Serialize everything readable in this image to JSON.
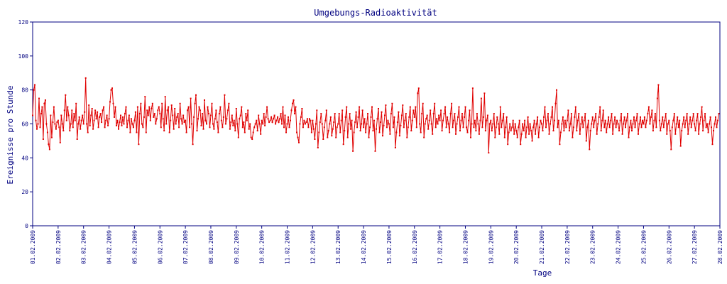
{
  "chart_data": {
    "type": "line",
    "title": "Umgebungs-Radioaktivität",
    "xlabel": "Tage",
    "ylabel": "Ereignisse pro Stunde",
    "ylim": [
      0,
      120
    ],
    "yticks": [
      "0",
      "20",
      "40",
      "60",
      "80",
      "100",
      "120"
    ],
    "x_range": [
      "01.02.2009",
      "28.02.2009"
    ],
    "xticks": [
      "01.02.2009",
      "02.02.2009",
      "03.02.2009",
      "04.02.2009",
      "05.02.2009",
      "06.02.2009",
      "07.02.2009",
      "08.02.2009",
      "09.02.2009",
      "10.02.2009",
      "11.02.2009",
      "12.02.2009",
      "13.02.2009",
      "14.02.2009",
      "15.02.2009",
      "16.02.2009",
      "17.02.2009",
      "18.02.2009",
      "19.02.2009",
      "20.02.2009",
      "21.02.2009",
      "22.02.2009",
      "23.02.2009",
      "24.02.2009",
      "25.02.2009",
      "26.02.2009",
      "27.02.2009",
      "28.02.2009"
    ],
    "grid": false,
    "legend": "none",
    "series_color": "#e00000",
    "axis_color": "#000080",
    "series": [
      {
        "name": "",
        "daily_values": [
          [
            65,
            80,
            83,
            62,
            57,
            60,
            75,
            58,
            66,
            70,
            51,
            72,
            74,
            60,
            55,
            48,
            45,
            65,
            52,
            61,
            70,
            60,
            57,
            61
          ],
          [
            62,
            58,
            49,
            65,
            60,
            56,
            68,
            77,
            62,
            70,
            65,
            56,
            60,
            68,
            58,
            66,
            62,
            72,
            51,
            60,
            64,
            57,
            62,
            65
          ],
          [
            60,
            67,
            87,
            60,
            55,
            71,
            59,
            65,
            69,
            57,
            62,
            68,
            63,
            67,
            58,
            64,
            66,
            61,
            68,
            70,
            58,
            62,
            65,
            59
          ],
          [
            63,
            73,
            80,
            81,
            72,
            64,
            70,
            59,
            62,
            57,
            61,
            65,
            59,
            64,
            60,
            66,
            70,
            58,
            62,
            65,
            55,
            63,
            60,
            58
          ],
          [
            62,
            67,
            55,
            70,
            48,
            66,
            72,
            60,
            58,
            64,
            76,
            55,
            68,
            65,
            70,
            62,
            69,
            72,
            64,
            66,
            60,
            63,
            68,
            70
          ],
          [
            66,
            58,
            72,
            63,
            56,
            76,
            60,
            68,
            70,
            55,
            62,
            71,
            65,
            57,
            69,
            60,
            64,
            66,
            58,
            72,
            63,
            60,
            65,
            61
          ],
          [
            62,
            55,
            68,
            70,
            58,
            75,
            60,
            48,
            64,
            72,
            77,
            56,
            63,
            70,
            68,
            59,
            66,
            57,
            74,
            62,
            60,
            70,
            66,
            58
          ],
          [
            65,
            72,
            60,
            57,
            63,
            68,
            61,
            55,
            66,
            70,
            62,
            58,
            64,
            77,
            60,
            63,
            68,
            72,
            57,
            61,
            65,
            59,
            62,
            56
          ],
          [
            69,
            60,
            52,
            63,
            65,
            70,
            58,
            61,
            55,
            66,
            62,
            68,
            57,
            60,
            52,
            51,
            55,
            58,
            60,
            62,
            56,
            65,
            60,
            54
          ],
          [
            62,
            60,
            66,
            59,
            64,
            70,
            63,
            61,
            62,
            64,
            61,
            63,
            65,
            60,
            62,
            64,
            61,
            63,
            66,
            60,
            70,
            58,
            65,
            55
          ],
          [
            60,
            64,
            58,
            62,
            68,
            72,
            74,
            66,
            70,
            55,
            52,
            49,
            60,
            64,
            69,
            58,
            62,
            60,
            61,
            63,
            58,
            63,
            62,
            55
          ],
          [
            62,
            57,
            51,
            60,
            68,
            46,
            55,
            61,
            66,
            60,
            51,
            58,
            62,
            68,
            52,
            56,
            60,
            64,
            53,
            57,
            61,
            66,
            52,
            58
          ],
          [
            60,
            66,
            55,
            62,
            68,
            48,
            56,
            64,
            70,
            52,
            60,
            66,
            57,
            62,
            44,
            55,
            61,
            67,
            58,
            64,
            70,
            56,
            60,
            68
          ],
          [
            58,
            63,
            55,
            60,
            66,
            52,
            58,
            64,
            70,
            56,
            62,
            44,
            57,
            63,
            69,
            55,
            61,
            67,
            53,
            59,
            65,
            71,
            58,
            62
          ],
          [
            60,
            54,
            66,
            72,
            58,
            64,
            46,
            55,
            61,
            67,
            53,
            59,
            65,
            71,
            58,
            62,
            66,
            52,
            58,
            64,
            70,
            56,
            62,
            68
          ],
          [
            64,
            70,
            58,
            78,
            81,
            60,
            55,
            66,
            72,
            52,
            60,
            63,
            65,
            57,
            62,
            68,
            60,
            54,
            66,
            72,
            58,
            63,
            60,
            65
          ],
          [
            62,
            68,
            56,
            62,
            66,
            70,
            58,
            64,
            60,
            55,
            66,
            72,
            58,
            62,
            66,
            54,
            60,
            64,
            70,
            56,
            62,
            66,
            58,
            64
          ],
          [
            70,
            58,
            55,
            62,
            68,
            52,
            60,
            81,
            58,
            62,
            56,
            66,
            60,
            54,
            62,
            75,
            58,
            64,
            78,
            56,
            62,
            65,
            43,
            60
          ],
          [
            62,
            56,
            60,
            66,
            52,
            58,
            64,
            60,
            54,
            70,
            58,
            62,
            66,
            52,
            58,
            64,
            48,
            55,
            60,
            56,
            58,
            62,
            54,
            60
          ],
          [
            56,
            52,
            58,
            62,
            48,
            54,
            60,
            56,
            62,
            52,
            58,
            64,
            54,
            60,
            56,
            50,
            58,
            62,
            54,
            60,
            64,
            52,
            58,
            62
          ],
          [
            60,
            56,
            64,
            70,
            58,
            62,
            66,
            54,
            60,
            64,
            70,
            56,
            62,
            72,
            80,
            58,
            62,
            48,
            55,
            60,
            64,
            56,
            62,
            58
          ],
          [
            62,
            68,
            56,
            60,
            66,
            52,
            58,
            64,
            70,
            56,
            62,
            66,
            54,
            60,
            64,
            58,
            62,
            66,
            50,
            58,
            62,
            45,
            56,
            60
          ],
          [
            64,
            58,
            62,
            66,
            54,
            60,
            64,
            70,
            56,
            62,
            68,
            58,
            62,
            55,
            60,
            64,
            58,
            62,
            66,
            54,
            60,
            64,
            58,
            62
          ],
          [
            60,
            56,
            62,
            66,
            54,
            60,
            64,
            58,
            62,
            66,
            52,
            58,
            62,
            56,
            60,
            64,
            58,
            62,
            66,
            54,
            60,
            64,
            58,
            62
          ],
          [
            60,
            64,
            58,
            62,
            66,
            70,
            60,
            64,
            68,
            56,
            62,
            66,
            58,
            75,
            83,
            62,
            56,
            60,
            64,
            58,
            62,
            66,
            54,
            60
          ],
          [
            62,
            56,
            45,
            58,
            62,
            66,
            54,
            60,
            64,
            58,
            62,
            47,
            56,
            60,
            64,
            58,
            62,
            66,
            54,
            60,
            64,
            58,
            62,
            66
          ],
          [
            60,
            56,
            62,
            66,
            54,
            60,
            64,
            70,
            56,
            62,
            66,
            58,
            60,
            55,
            60,
            64,
            58,
            48,
            56,
            60,
            64,
            58,
            62,
            66
          ],
          [
            70,
            58,
            62,
            66,
            43,
            56,
            60,
            64,
            58,
            62,
            75,
            54,
            60,
            64,
            70,
            56,
            62,
            66,
            58,
            62,
            74,
            56,
            60,
            62
          ]
        ]
      }
    ]
  }
}
